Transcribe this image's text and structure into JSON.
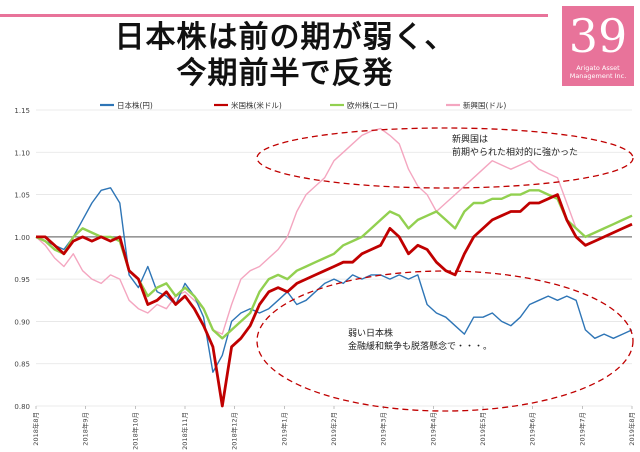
{
  "header": {
    "title_line1": "日本株は前の期が弱く、",
    "title_line2": "今期前半で反発"
  },
  "logo": {
    "number": "39",
    "line1": "Arigato Asset",
    "line2": "Management Inc."
  },
  "colors": {
    "accent": "#e8739a",
    "japan": "#2e75b6",
    "us": "#c00000",
    "europe": "#92d050",
    "emerging": "#f4a6c0",
    "annotation": "#c00000"
  },
  "chart_data": {
    "type": "line",
    "ylim": [
      0.8,
      1.15
    ],
    "yticks": [
      "0.80",
      "0.85",
      "0.90",
      "0.95",
      "1.00",
      "1.05",
      "1.10",
      "1.15"
    ],
    "grid": true,
    "baseline": 1.0,
    "legend_position": "top",
    "x_labels": [
      "2018年8月",
      "2018年9月",
      "2018年10月",
      "2018年11月",
      "2018年12月",
      "2019年1月",
      "2019年2月",
      "2019年3月",
      "2019年4月",
      "2019年5月",
      "2019年6月",
      "2019年7月",
      "2019年8月"
    ],
    "series": [
      {
        "name": "日本株(円)",
        "color": "#2e75b6",
        "values": [
          1.0,
          0.995,
          0.99,
          0.985,
          1.0,
          1.02,
          1.04,
          1.055,
          1.058,
          1.04,
          0.955,
          0.94,
          0.965,
          0.935,
          0.93,
          0.92,
          0.945,
          0.93,
          0.905,
          0.84,
          0.86,
          0.9,
          0.91,
          0.915,
          0.91,
          0.915,
          0.925,
          0.935,
          0.92,
          0.925,
          0.935,
          0.945,
          0.95,
          0.945,
          0.955,
          0.95,
          0.955,
          0.955,
          0.95,
          0.955,
          0.95,
          0.955,
          0.92,
          0.91,
          0.905,
          0.895,
          0.885,
          0.905,
          0.905,
          0.91,
          0.9,
          0.895,
          0.905,
          0.92,
          0.925,
          0.93,
          0.925,
          0.93,
          0.925,
          0.89,
          0.88,
          0.885,
          0.88,
          0.885,
          0.89
        ]
      },
      {
        "name": "米国株(米ドル)",
        "color": "#c00000",
        "values": [
          1.0,
          1.0,
          0.99,
          0.98,
          0.995,
          1.0,
          0.995,
          1.0,
          0.995,
          1.0,
          0.96,
          0.95,
          0.92,
          0.925,
          0.935,
          0.92,
          0.93,
          0.915,
          0.895,
          0.87,
          0.8,
          0.87,
          0.88,
          0.895,
          0.92,
          0.935,
          0.94,
          0.935,
          0.945,
          0.95,
          0.955,
          0.96,
          0.965,
          0.97,
          0.97,
          0.98,
          0.985,
          0.99,
          1.01,
          1.0,
          0.98,
          0.99,
          0.985,
          0.97,
          0.96,
          0.955,
          0.98,
          1.0,
          1.01,
          1.02,
          1.025,
          1.03,
          1.03,
          1.04,
          1.04,
          1.045,
          1.05,
          1.02,
          1.0,
          0.99,
          0.995,
          1.0,
          1.005,
          1.01,
          1.015
        ]
      },
      {
        "name": "欧州株(ユーロ)",
        "color": "#92d050",
        "values": [
          1.0,
          0.995,
          0.985,
          0.98,
          1.0,
          1.01,
          1.005,
          1.0,
          1.0,
          0.995,
          0.96,
          0.95,
          0.93,
          0.94,
          0.945,
          0.93,
          0.94,
          0.93,
          0.915,
          0.89,
          0.88,
          0.89,
          0.9,
          0.91,
          0.935,
          0.95,
          0.955,
          0.95,
          0.96,
          0.965,
          0.97,
          0.975,
          0.98,
          0.99,
          0.995,
          1.0,
          1.01,
          1.02,
          1.03,
          1.025,
          1.01,
          1.02,
          1.025,
          1.03,
          1.02,
          1.01,
          1.03,
          1.04,
          1.04,
          1.045,
          1.045,
          1.05,
          1.05,
          1.055,
          1.055,
          1.05,
          1.045,
          1.02,
          1.01,
          1.0,
          1.005,
          1.01,
          1.015,
          1.02,
          1.025
        ]
      },
      {
        "name": "新興国(ドル)",
        "color": "#f4a6c0",
        "values": [
          1.0,
          0.99,
          0.975,
          0.965,
          0.98,
          0.96,
          0.95,
          0.945,
          0.955,
          0.95,
          0.925,
          0.915,
          0.91,
          0.92,
          0.915,
          0.93,
          0.935,
          0.925,
          0.915,
          0.89,
          0.885,
          0.92,
          0.95,
          0.96,
          0.965,
          0.975,
          0.985,
          1.0,
          1.03,
          1.05,
          1.06,
          1.07,
          1.09,
          1.1,
          1.11,
          1.12,
          1.125,
          1.128,
          1.12,
          1.11,
          1.08,
          1.06,
          1.05,
          1.03,
          1.04,
          1.05,
          1.06,
          1.07,
          1.08,
          1.09,
          1.085,
          1.08,
          1.085,
          1.09,
          1.08,
          1.075,
          1.07,
          1.04,
          1.01,
          1.0,
          1.005,
          1.01,
          1.015,
          1.02,
          1.025
        ]
      }
    ]
  },
  "annotations": {
    "emerging_line1": "新興国は",
    "emerging_line2": "前期やられた相対的に強かった",
    "japan_line1": "弱い日本株",
    "japan_line2": "金融緩和競争も脱落懸念で・・・。"
  }
}
